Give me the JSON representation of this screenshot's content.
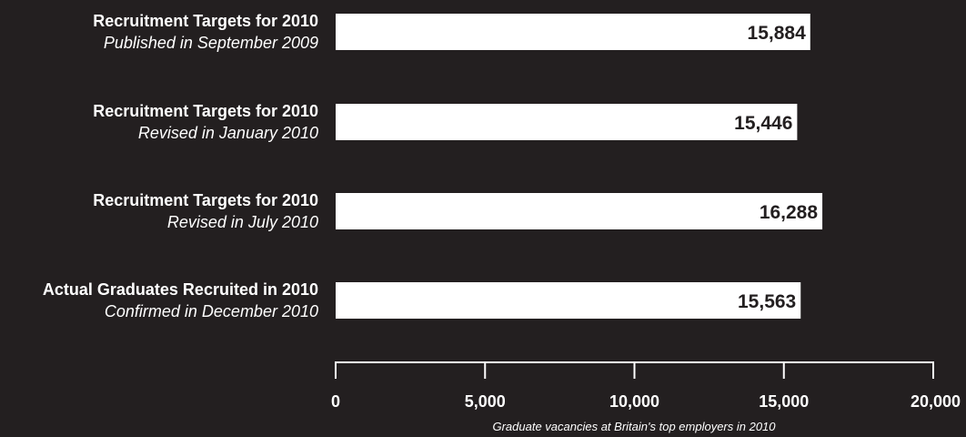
{
  "chart_data": {
    "type": "bar",
    "orientation": "horizontal",
    "categories": [
      {
        "title": "Recruitment Targets for 2010",
        "subtitle": "Published in September 2009"
      },
      {
        "title": "Recruitment Targets for 2010",
        "subtitle": "Revised in January 2010"
      },
      {
        "title": "Recruitment Targets for 2010",
        "subtitle": "Revised in July 2010"
      },
      {
        "title": "Actual Graduates Recruited in 2010",
        "subtitle": "Confirmed in December 2010"
      }
    ],
    "values": [
      15884,
      15446,
      16288,
      15563
    ],
    "value_labels": [
      "15,884",
      "15,446",
      "16,288",
      "15,563"
    ],
    "xlim": [
      0,
      20000
    ],
    "ticks": [
      0,
      5000,
      10000,
      15000,
      20000
    ],
    "tick_labels": [
      "0",
      "5,000",
      "10,000",
      "15,000",
      "20,000"
    ],
    "xlabel": "Graduate vacancies at Britain's top employers in 2010",
    "grid": false,
    "colors": {
      "background": "#231f20",
      "bar": "#ffffff",
      "text": "#ffffff",
      "value_text": "#231f20"
    }
  }
}
